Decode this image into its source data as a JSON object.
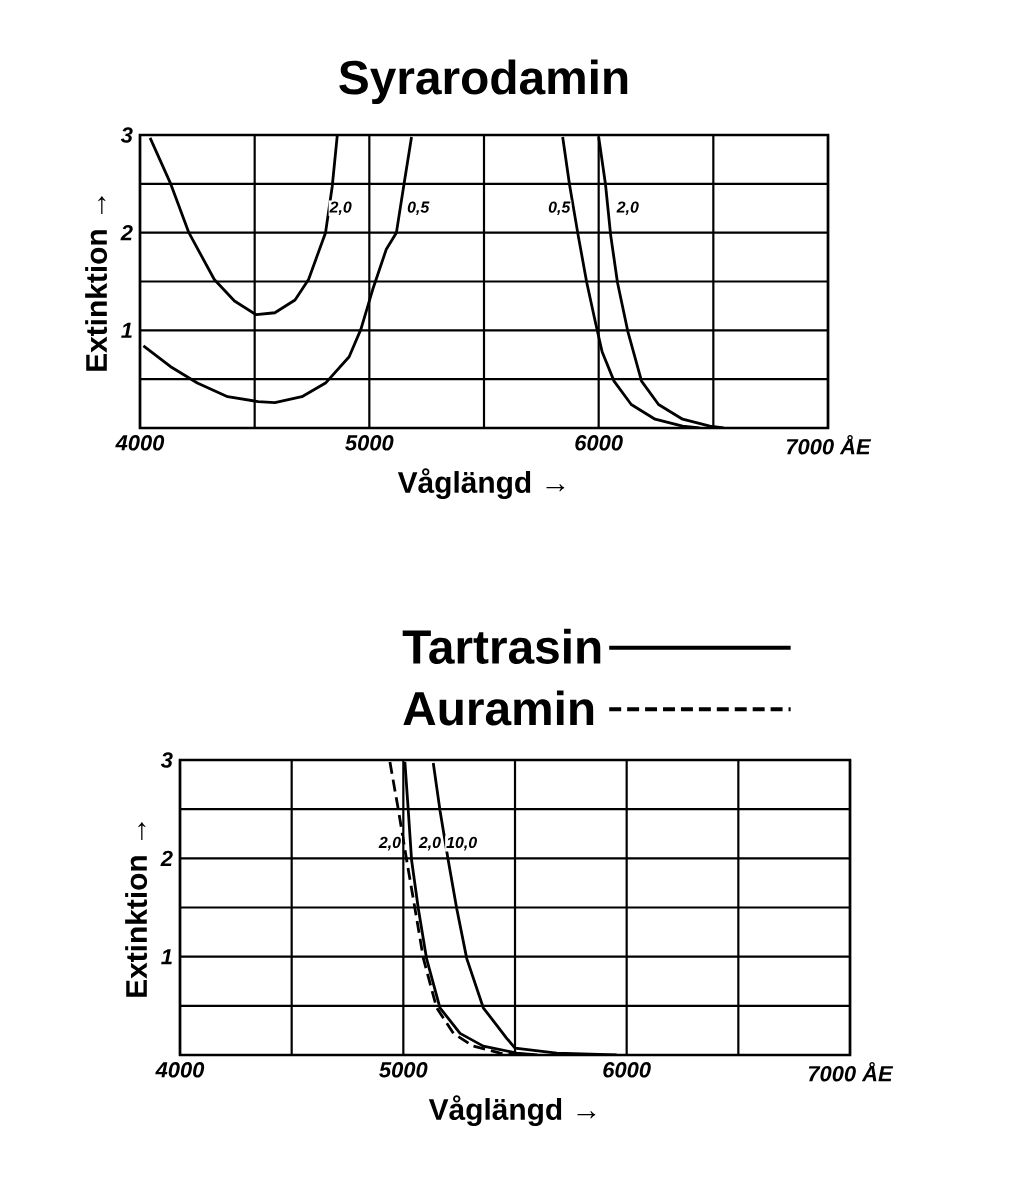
{
  "chart_data": [
    {
      "type": "line",
      "title": "Syrarodamin",
      "xlabel": "Våglängd →",
      "ylabel": "Extinktion →",
      "xlim": [
        4000,
        7000
      ],
      "ylim": [
        0,
        3
      ],
      "xticks": [
        4000,
        {
          "value": 4500,
          "label": null
        },
        5000,
        {
          "value": 5500,
          "label": null
        },
        6000,
        {
          "value": 6500,
          "label": null
        },
        {
          "value": 7000,
          "label": "7000 ÅE"
        }
      ],
      "yticks": [
        {
          "value": 0,
          "label": null
        },
        {
          "value": 0.5,
          "label": null
        },
        1,
        {
          "value": 1.5,
          "label": null
        },
        2,
        {
          "value": 2.5,
          "label": null
        },
        3
      ],
      "grid": true,
      "legend": false,
      "series": [
        {
          "color": "#000000",
          "line_style": "solid",
          "x": [
            4044,
            4132,
            4213,
            4324,
            4412,
            4507,
            4588,
            4676,
            4735,
            4809,
            4838,
            4860
          ],
          "values": [
            2.97,
            2.51,
            2.0,
            1.52,
            1.3,
            1.16,
            1.18,
            1.31,
            1.52,
            2.0,
            2.47,
            2.99
          ]
        },
        {
          "color": "#000000",
          "line_style": "solid",
          "x": [
            4015,
            4132,
            4250,
            4382,
            4515,
            4588,
            4706,
            4809,
            4912,
            4963,
            5015,
            5074,
            5118,
            5154,
            5184
          ],
          "values": [
            0.84,
            0.63,
            0.46,
            0.32,
            0.27,
            0.26,
            0.32,
            0.46,
            0.73,
            1.01,
            1.42,
            1.83,
            2.0,
            2.54,
            2.98
          ]
        },
        {
          "color": "#000000",
          "line_style": "solid",
          "x": [
            5843,
            5873,
            5910,
            5948,
            5985,
            6015,
            6067,
            6142,
            6246,
            6366,
            6440
          ],
          "values": [
            2.98,
            2.49,
            1.98,
            1.49,
            1.09,
            0.78,
            0.48,
            0.24,
            0.09,
            0.02,
            0.0
          ]
        },
        {
          "color": "#000000",
          "line_style": "solid",
          "x": [
            6000,
            6030,
            6052,
            6082,
            6127,
            6187,
            6261,
            6366,
            6485,
            6545
          ],
          "values": [
            2.98,
            2.49,
            1.98,
            1.49,
            0.99,
            0.48,
            0.24,
            0.09,
            0.02,
            0.0
          ]
        }
      ],
      "annotations": [
        {
          "text": "2,0",
          "x": 4875,
          "y": 2.25
        },
        {
          "text": "0,5",
          "x": 5213,
          "y": 2.25
        },
        {
          "text": "0,5",
          "x": 5828,
          "y": 2.25
        },
        {
          "text": "2,0",
          "x": 6127,
          "y": 2.25
        }
      ]
    },
    {
      "type": "line",
      "xlabel": "Våglängd →",
      "ylabel": "Extinktion →",
      "xlim": [
        4000,
        7000
      ],
      "ylim": [
        0,
        3
      ],
      "xticks": [
        4000,
        {
          "value": 4500,
          "label": null
        },
        5000,
        {
          "value": 5500,
          "label": null
        },
        6000,
        {
          "value": 6500,
          "label": null
        },
        {
          "value": 7000,
          "label": "7000 ÅE"
        }
      ],
      "yticks": [
        {
          "value": 0,
          "label": null
        },
        {
          "value": 0.5,
          "label": null
        },
        1,
        {
          "value": 1.5,
          "label": null
        },
        2,
        {
          "value": 2.5,
          "label": null
        },
        3
      ],
      "grid": true,
      "legend": "top",
      "series": [
        {
          "name": "Tartrasin",
          "color": "#000000",
          "line_style": "solid",
          "x": [
            5007,
            5022,
            5037,
            5067,
            5104,
            5164,
            5254,
            5358,
            5507,
            5600
          ],
          "values": [
            2.98,
            2.49,
            1.98,
            1.49,
            0.98,
            0.48,
            0.22,
            0.09,
            0.02,
            0.0
          ]
        },
        {
          "color": "#000000",
          "line_style": "solid",
          "x": [
            5134,
            5164,
            5201,
            5239,
            5284,
            5358,
            5463,
            5500,
            5687,
            5955
          ],
          "values": [
            2.97,
            2.49,
            1.98,
            1.49,
            0.98,
            0.48,
            0.17,
            0.07,
            0.02,
            0.0
          ]
        },
        {
          "name": "Auramin",
          "color": "#000000",
          "line_style": "dashed",
          "x": [
            4940,
            4978,
            5015,
            5052,
            5090,
            5149,
            5224,
            5313,
            5433,
            5520
          ],
          "values": [
            2.98,
            2.49,
            1.98,
            1.49,
            0.98,
            0.48,
            0.22,
            0.09,
            0.02,
            0.0
          ]
        }
      ],
      "annotations": [
        {
          "text": "2,0",
          "x": 4940,
          "y": 2.15
        },
        {
          "text": "2,0",
          "x": 5119,
          "y": 2.15
        },
        {
          "text": "10,0",
          "x": 5261,
          "y": 2.15
        }
      ]
    }
  ]
}
